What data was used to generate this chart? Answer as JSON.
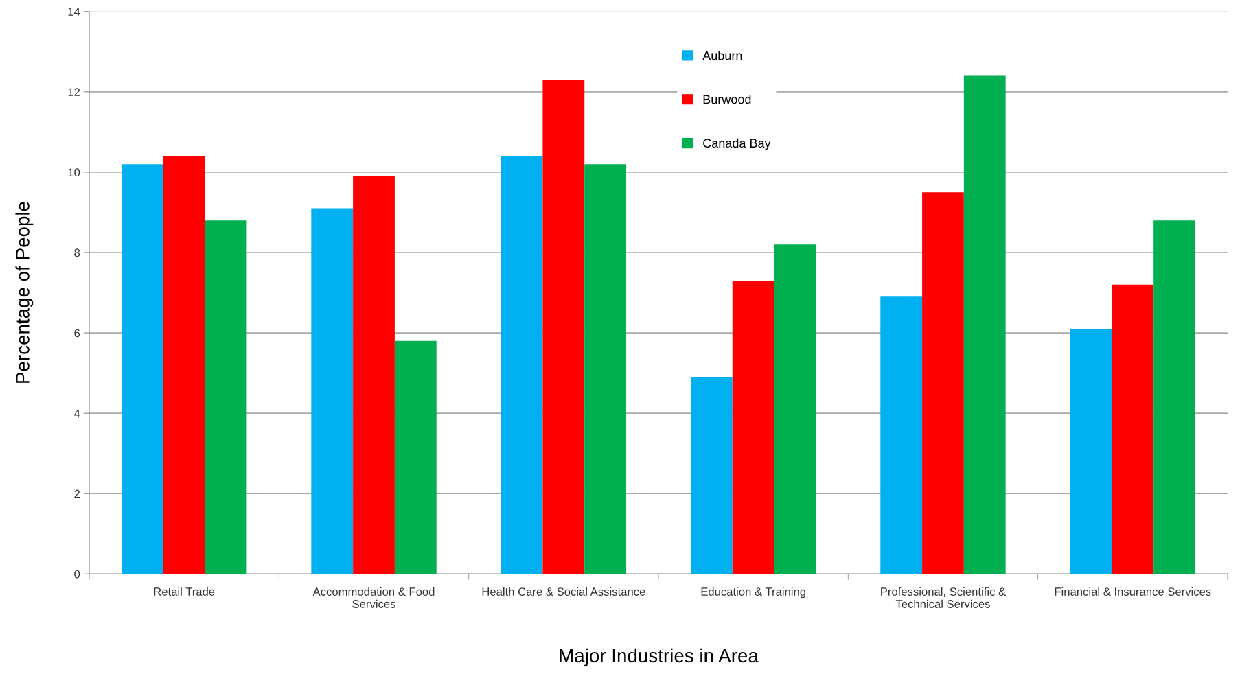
{
  "chart_data": {
    "type": "bar",
    "xlabel": "Major Industries in Area",
    "ylabel": "Percentage of People",
    "categories": [
      "Retail Trade",
      "Accommodation & Food\nServices",
      "Health Care & Social Assistance",
      "Education & Training",
      "Professional, Scientific &\nTechnical Services",
      "Financial & Insurance Services"
    ],
    "series": [
      {
        "name": "Auburn",
        "color": "#00b0f0",
        "values": [
          10.2,
          9.1,
          10.4,
          4.9,
          6.9,
          6.1
        ]
      },
      {
        "name": "Burwood",
        "color": "#ff0000",
        "values": [
          10.4,
          9.9,
          12.3,
          7.3,
          9.5,
          7.2
        ]
      },
      {
        "name": "Canada Bay",
        "color": "#00b050",
        "values": [
          8.8,
          5.8,
          10.2,
          8.2,
          12.4,
          8.8
        ]
      }
    ],
    "ylim": [
      0,
      14
    ],
    "yticks": [
      0,
      2,
      4,
      6,
      8,
      10,
      12,
      14
    ],
    "grid": "y",
    "legend": "top"
  }
}
